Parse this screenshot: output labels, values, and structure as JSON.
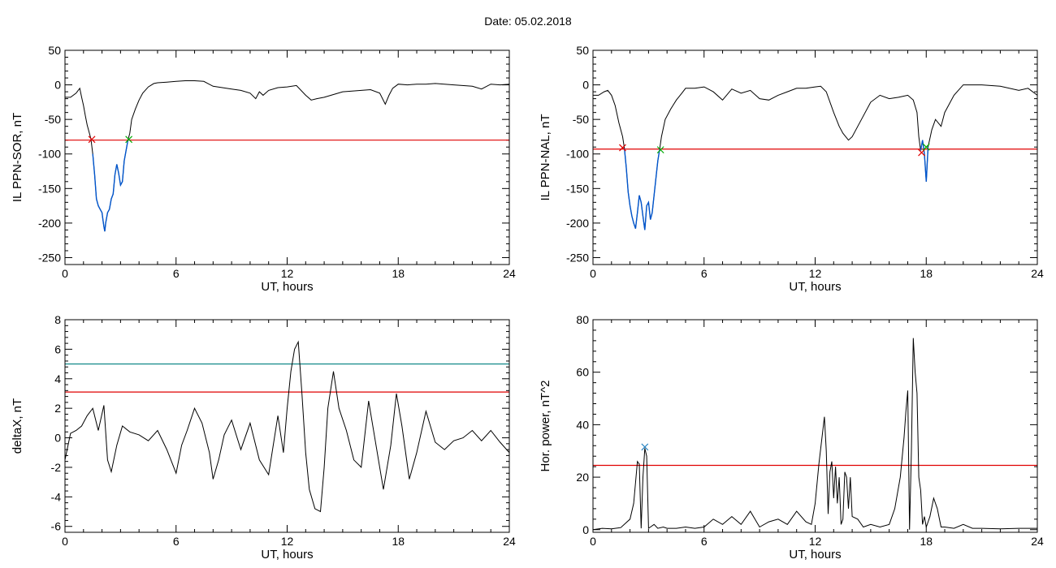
{
  "page": {
    "title": "Date:  05.02.2018"
  },
  "colors": {
    "axis": "#000000",
    "trace": "#000000",
    "event": "#0055cc",
    "threshold": "#e00000",
    "threshold2": "#008080",
    "start_marker": "#e00000",
    "end_marker": "#00aa00",
    "peak_marker": "#2080c0"
  },
  "chart_data": [
    {
      "type": "line",
      "xlabel": "UT, hours",
      "ylabel": "IL PPN-SOR, nT",
      "xlim": [
        0,
        24
      ],
      "ylim": [
        -260,
        50
      ],
      "xticks": [
        0,
        6,
        12,
        18,
        24
      ],
      "yticks": [
        50,
        0,
        -50,
        -100,
        -150,
        -200,
        -250
      ],
      "grid": false,
      "series": [
        {
          "role": "trace",
          "x": [
            0,
            0.3,
            0.6,
            0.8,
            0.9,
            1.0,
            1.1,
            1.2,
            1.3,
            1.4,
            1.5,
            1.6,
            1.7,
            1.8,
            1.9,
            2.0,
            2.05,
            2.1,
            2.15,
            2.2,
            2.3,
            2.4,
            2.5,
            2.6,
            2.7,
            2.8,
            2.9,
            3.0,
            3.1,
            3.2,
            3.3,
            3.4,
            3.5,
            3.6,
            3.8,
            4.0,
            4.2,
            4.5,
            4.8,
            5.0,
            5.5,
            6.0,
            6.5,
            7.0,
            7.5,
            8.0,
            8.5,
            9.0,
            9.5,
            10.0,
            10.3,
            10.5,
            10.7,
            11.0,
            11.5,
            12.0,
            12.5,
            13.0,
            13.3,
            13.6,
            14.0,
            14.5,
            15.0,
            15.5,
            16.0,
            16.5,
            17.0,
            17.3,
            17.5,
            17.7,
            18.0,
            18.5,
            19.0,
            19.5,
            20.0,
            21.0,
            22.0,
            22.5,
            23.0,
            23.5,
            24.0
          ],
          "y": [
            -18,
            -18,
            -12,
            -5,
            -18,
            -30,
            -45,
            -58,
            -68,
            -78,
            -100,
            -130,
            -165,
            -175,
            -180,
            -185,
            -195,
            -205,
            -212,
            -200,
            -185,
            -180,
            -165,
            -158,
            -130,
            -115,
            -128,
            -145,
            -140,
            -110,
            -95,
            -80,
            -70,
            -50,
            -35,
            -22,
            -12,
            -3,
            2,
            3,
            4,
            5,
            6,
            6,
            5,
            -2,
            -4,
            -6,
            -8,
            -12,
            -20,
            -10,
            -15,
            -8,
            -4,
            -3,
            -1,
            -15,
            -22,
            -20,
            -18,
            -14,
            -10,
            -9,
            -8,
            -7,
            -12,
            -28,
            -15,
            -5,
            1,
            0,
            1,
            1,
            2,
            0,
            -2,
            -6,
            1,
            0,
            1
          ]
        },
        {
          "role": "event",
          "x": [
            1.5,
            1.6,
            1.7,
            1.8,
            1.9,
            2.0,
            2.05,
            2.1,
            2.15,
            2.2,
            2.3,
            2.4,
            2.5,
            2.6,
            2.7,
            2.8,
            2.9,
            3.0,
            3.1,
            3.2,
            3.3,
            3.4
          ],
          "y": [
            -100,
            -130,
            -165,
            -175,
            -180,
            -185,
            -195,
            -205,
            -212,
            -200,
            -185,
            -180,
            -165,
            -158,
            -130,
            -115,
            -128,
            -145,
            -140,
            -110,
            -95,
            -80
          ]
        }
      ],
      "threshold": -80,
      "markers": [
        {
          "kind": "start",
          "x": 1.45,
          "y": -79
        },
        {
          "kind": "end",
          "x": 3.45,
          "y": -79
        }
      ]
    },
    {
      "type": "line",
      "xlabel": "UT, hours",
      "ylabel": "IL PPN-NAL, nT",
      "xlim": [
        0,
        24
      ],
      "ylim": [
        -260,
        50
      ],
      "xticks": [
        0,
        6,
        12,
        18,
        24
      ],
      "yticks": [
        50,
        0,
        -50,
        -100,
        -150,
        -200,
        -250
      ],
      "grid": false,
      "series": [
        {
          "role": "trace",
          "x": [
            0,
            0.3,
            0.6,
            0.8,
            1.0,
            1.2,
            1.4,
            1.6,
            1.7,
            1.8,
            1.9,
            2.0,
            2.1,
            2.2,
            2.3,
            2.4,
            2.5,
            2.6,
            2.7,
            2.8,
            2.9,
            3.0,
            3.1,
            3.2,
            3.3,
            3.4,
            3.5,
            3.6,
            3.7,
            3.9,
            4.2,
            4.5,
            4.8,
            5.0,
            5.5,
            6.0,
            6.5,
            7.0,
            7.5,
            8.0,
            8.5,
            9.0,
            9.5,
            10.0,
            10.5,
            11.0,
            11.5,
            12.0,
            12.3,
            12.6,
            13.0,
            13.3,
            13.5,
            13.8,
            14.0,
            14.5,
            15.0,
            15.5,
            16.0,
            16.5,
            17.0,
            17.3,
            17.5,
            17.6,
            17.7,
            17.8,
            17.9,
            18.0,
            18.1,
            18.3,
            18.5,
            18.8,
            19.0,
            19.5,
            20.0,
            21.0,
            22.0,
            23.0,
            23.5,
            24.0
          ],
          "y": [
            -15,
            -15,
            -10,
            -8,
            -15,
            -30,
            -55,
            -75,
            -92,
            -120,
            -155,
            -175,
            -190,
            -200,
            -208,
            -185,
            -160,
            -170,
            -190,
            -210,
            -175,
            -170,
            -195,
            -185,
            -160,
            -135,
            -110,
            -93,
            -75,
            -50,
            -35,
            -22,
            -12,
            -5,
            -5,
            -3,
            -10,
            -22,
            -6,
            -12,
            -8,
            -20,
            -22,
            -15,
            -10,
            -5,
            -5,
            -3,
            -2,
            -10,
            -40,
            -60,
            -70,
            -80,
            -75,
            -50,
            -25,
            -15,
            -20,
            -18,
            -15,
            -22,
            -40,
            -75,
            -95,
            -80,
            -100,
            -140,
            -90,
            -65,
            -50,
            -60,
            -40,
            -15,
            0,
            0,
            -2,
            -8,
            -5,
            -15
          ]
        },
        {
          "role": "event",
          "x": [
            1.7,
            1.8,
            1.9,
            2.0,
            2.1,
            2.2,
            2.3,
            2.4,
            2.5,
            2.6,
            2.7,
            2.8,
            2.9,
            3.0,
            3.1,
            3.2,
            3.3,
            3.4,
            3.5,
            3.6
          ],
          "y": [
            -92,
            -120,
            -155,
            -175,
            -190,
            -200,
            -208,
            -185,
            -160,
            -170,
            -190,
            -210,
            -175,
            -170,
            -195,
            -185,
            -160,
            -135,
            -110,
            -93
          ]
        },
        {
          "role": "event",
          "x": [
            17.7,
            17.8,
            17.9,
            18.0,
            18.1
          ],
          "y": [
            -95,
            -80,
            -100,
            -140,
            -90
          ]
        }
      ],
      "threshold": -93,
      "markers": [
        {
          "kind": "start",
          "x": 1.6,
          "y": -91
        },
        {
          "kind": "end",
          "x": 3.65,
          "y": -94
        },
        {
          "kind": "start",
          "x": 17.75,
          "y": -98
        },
        {
          "kind": "end",
          "x": 18.0,
          "y": -90
        }
      ]
    },
    {
      "type": "line",
      "xlabel": "UT, hours",
      "ylabel": "deltaX, nT",
      "xlim": [
        0,
        24
      ],
      "ylim": [
        -6.4,
        8
      ],
      "xticks": [
        0,
        6,
        12,
        18,
        24
      ],
      "yticks": [
        8,
        6,
        4,
        2,
        0,
        -2,
        -4,
        -6
      ],
      "grid": false,
      "series": [
        {
          "role": "trace",
          "x": [
            0,
            0.3,
            0.6,
            0.9,
            1.2,
            1.5,
            1.8,
            2.1,
            2.3,
            2.5,
            2.8,
            3.1,
            3.5,
            4.0,
            4.5,
            5.0,
            5.5,
            6.0,
            6.3,
            6.6,
            7.0,
            7.4,
            7.8,
            8.0,
            8.3,
            8.6,
            9.0,
            9.5,
            10.0,
            10.5,
            11.0,
            11.5,
            11.8,
            12.0,
            12.2,
            12.4,
            12.6,
            12.8,
            13.0,
            13.2,
            13.5,
            13.8,
            14.0,
            14.2,
            14.5,
            14.8,
            15.2,
            15.6,
            16.0,
            16.4,
            16.8,
            17.2,
            17.6,
            17.9,
            18.2,
            18.6,
            19.0,
            19.5,
            20.0,
            20.5,
            21.0,
            21.5,
            22.0,
            22.5,
            23.0,
            23.5,
            24.0
          ],
          "y": [
            -1.5,
            0.3,
            0.5,
            0.8,
            1.5,
            2.0,
            0.5,
            2.2,
            -1.5,
            -2.3,
            -0.5,
            0.8,
            0.4,
            0.2,
            -0.2,
            0.5,
            -0.8,
            -2.4,
            -0.5,
            0.5,
            2.0,
            1.0,
            -1.0,
            -2.8,
            -1.5,
            0.2,
            1.2,
            -0.8,
            1.0,
            -1.5,
            -2.5,
            1.5,
            -1.0,
            2.0,
            4.5,
            6.0,
            6.5,
            3.0,
            -1.0,
            -3.5,
            -4.8,
            -5.0,
            -2.0,
            2.0,
            4.5,
            2.0,
            0.5,
            -1.5,
            -2.0,
            2.5,
            -0.5,
            -3.5,
            -0.5,
            3.0,
            0.8,
            -2.8,
            -1.0,
            1.8,
            -0.3,
            -0.8,
            -0.2,
            0.0,
            0.5,
            -0.2,
            0.5,
            -0.3,
            -1.0
          ]
        }
      ],
      "threshold": 3.1,
      "threshold2": 5.0,
      "markers": []
    },
    {
      "type": "line",
      "xlabel": "UT, hours",
      "ylabel": "Hor. power, nT^2",
      "xlim": [
        0,
        24
      ],
      "ylim": [
        -1,
        80
      ],
      "xticks": [
        0,
        6,
        12,
        18,
        24
      ],
      "yticks": [
        80,
        60,
        40,
        20,
        0
      ],
      "grid": false,
      "series": [
        {
          "role": "trace",
          "x": [
            0,
            0.5,
            1.0,
            1.5,
            2.0,
            2.2,
            2.4,
            2.5,
            2.6,
            2.7,
            2.8,
            2.9,
            3.0,
            3.1,
            3.3,
            3.5,
            3.8,
            4.0,
            4.5,
            5.0,
            5.5,
            6.0,
            6.5,
            7.0,
            7.5,
            8.0,
            8.5,
            9.0,
            9.5,
            10.0,
            10.5,
            11.0,
            11.5,
            11.8,
            12.0,
            12.2,
            12.5,
            12.6,
            12.7,
            12.8,
            12.9,
            13.0,
            13.1,
            13.2,
            13.3,
            13.4,
            13.5,
            13.6,
            13.7,
            13.8,
            13.9,
            14.0,
            14.3,
            14.6,
            15.0,
            15.5,
            16.0,
            16.3,
            16.6,
            16.8,
            16.9,
            17.0,
            17.1,
            17.2,
            17.3,
            17.4,
            17.5,
            17.6,
            17.7,
            17.8,
            17.9,
            18.0,
            18.2,
            18.4,
            18.6,
            18.8,
            19.0,
            19.5,
            20.0,
            20.5,
            21.0,
            22.0,
            23.0,
            24.0
          ],
          "y": [
            0,
            0.5,
            0.3,
            0.8,
            4,
            10,
            26,
            25,
            0.5,
            20,
            31,
            28,
            0.5,
            1,
            2,
            0.5,
            1,
            0.5,
            0.5,
            1,
            0.5,
            1,
            4,
            2,
            5,
            2,
            7,
            1,
            3,
            4,
            2,
            7,
            3,
            2,
            10,
            25,
            43,
            30,
            6,
            22,
            26,
            12,
            24,
            10,
            20,
            2,
            4,
            22,
            20,
            8,
            20,
            5,
            4,
            1,
            2,
            1,
            2,
            8,
            20,
            35,
            45,
            53,
            0,
            30,
            73,
            60,
            52,
            20,
            15,
            2,
            5,
            1,
            5,
            12,
            8,
            1,
            1,
            0.5,
            2,
            0.5,
            0.5,
            0.3,
            0.5,
            0.5
          ]
        }
      ],
      "threshold": 24.5,
      "markers": [
        {
          "kind": "peak",
          "x": 2.8,
          "y": 31.5
        }
      ]
    }
  ]
}
